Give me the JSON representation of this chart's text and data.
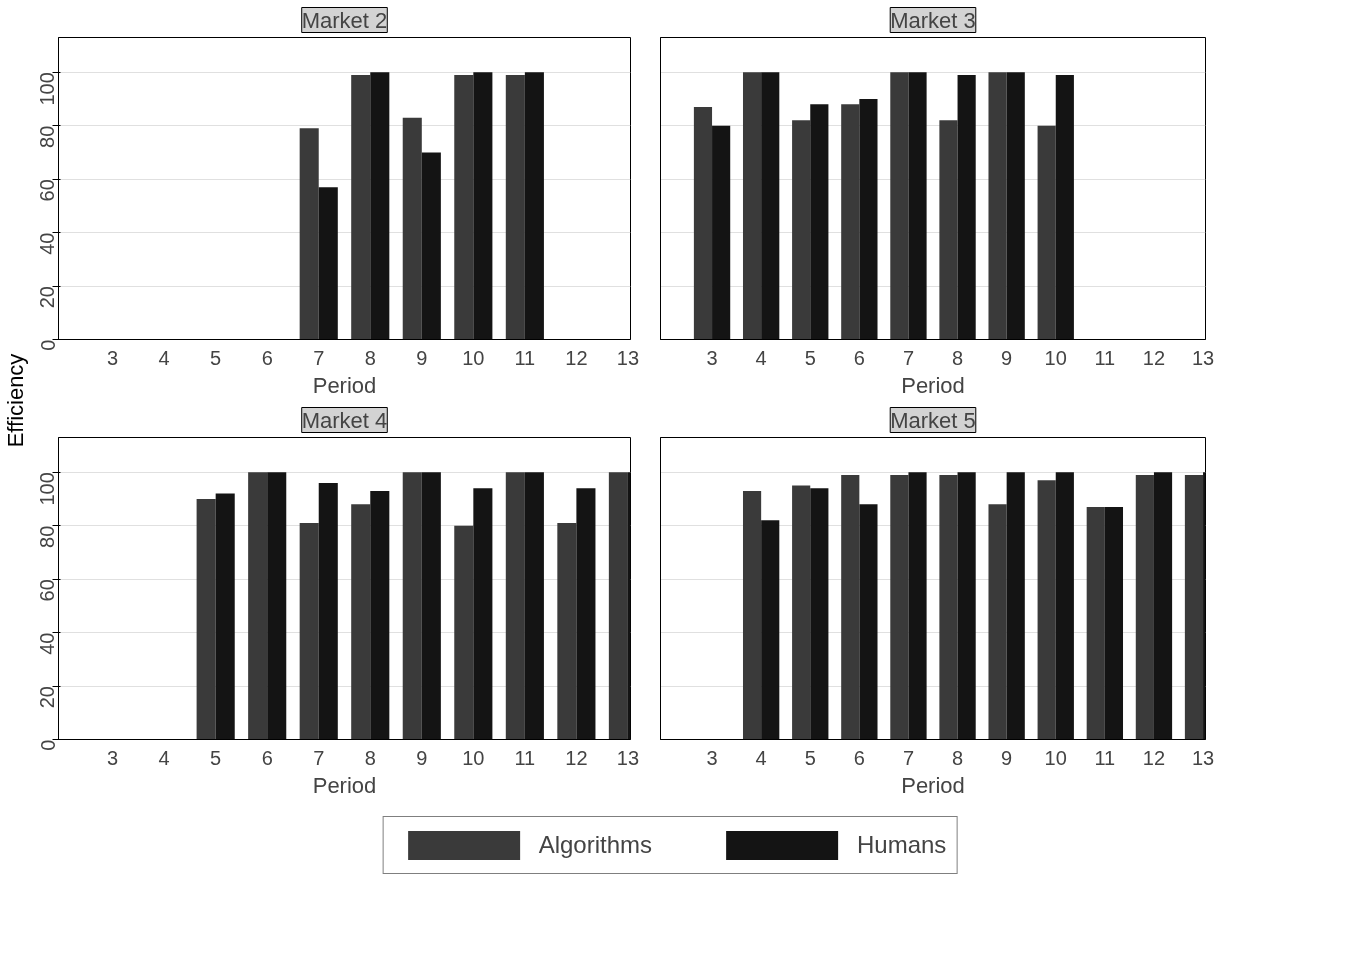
{
  "chart_data": [
    {
      "type": "bar",
      "title": "Market 2",
      "xlabel": "Period",
      "ylabel": "Efficiency",
      "categories": [
        "3",
        "4",
        "5",
        "6",
        "7",
        "8",
        "9",
        "10",
        "11",
        "12",
        "13"
      ],
      "ylim": [
        0,
        113
      ],
      "yticks": [
        0,
        20,
        40,
        60,
        80,
        100
      ],
      "grid": "y",
      "legend": "bottom",
      "series": [
        {
          "name": "Algorithms",
          "color": "#3a3a3a",
          "values": [
            null,
            null,
            null,
            null,
            79,
            99,
            83,
            99,
            99,
            null,
            null
          ]
        },
        {
          "name": "Humans",
          "color": "#141414",
          "values": [
            null,
            null,
            null,
            null,
            57,
            100,
            70,
            100,
            100,
            null,
            null
          ]
        }
      ]
    },
    {
      "type": "bar",
      "title": "Market 3",
      "xlabel": "Period",
      "categories": [
        "3",
        "4",
        "5",
        "6",
        "7",
        "8",
        "9",
        "10",
        "11",
        "12",
        "13"
      ],
      "ylim": [
        0,
        113
      ],
      "yticks": [
        0,
        20,
        40,
        60,
        80,
        100
      ],
      "grid": "y",
      "tick_labels": "x",
      "series": [
        {
          "color": "#3a3a3a",
          "values": [
            87,
            100,
            82,
            88,
            100,
            82,
            100,
            80,
            null,
            null,
            null
          ]
        },
        {
          "color": "#141414",
          "values": [
            80,
            100,
            88,
            90,
            100,
            99,
            100,
            99,
            null,
            null,
            null
          ]
        }
      ]
    },
    {
      "type": "bar",
      "title": "Market 4",
      "xlabel": "Period",
      "categories": [
        "3",
        "4",
        "5",
        "6",
        "7",
        "8",
        "9",
        "10",
        "11",
        "12",
        "13"
      ],
      "ylim": [
        0,
        113
      ],
      "yticks": [
        0,
        20,
        40,
        60,
        80,
        100
      ],
      "grid": "y",
      "series": [
        {
          "color": "#3a3a3a",
          "values": [
            null,
            null,
            90,
            100,
            81,
            88,
            100,
            80,
            100,
            81,
            100
          ]
        },
        {
          "color": "#141414",
          "values": [
            null,
            null,
            92,
            100,
            96,
            93,
            100,
            94,
            100,
            94,
            100
          ]
        }
      ]
    },
    {
      "type": "bar",
      "title": "Market 5",
      "xlabel": "Period",
      "categories": [
        "3",
        "4",
        "5",
        "6",
        "7",
        "8",
        "9",
        "10",
        "11",
        "12",
        "13"
      ],
      "ylim": [
        0,
        113
      ],
      "yticks": [
        0,
        20,
        40,
        60,
        80,
        100
      ],
      "grid": "y",
      "tick_labels": "x",
      "series": [
        {
          "color": "#3a3a3a",
          "values": [
            null,
            93,
            95,
            99,
            99,
            99,
            88,
            97,
            87,
            99,
            99
          ]
        },
        {
          "color": "#141414",
          "values": [
            null,
            82,
            94,
            88,
            100,
            100,
            100,
            100,
            87,
            100,
            100
          ]
        }
      ]
    }
  ]
}
